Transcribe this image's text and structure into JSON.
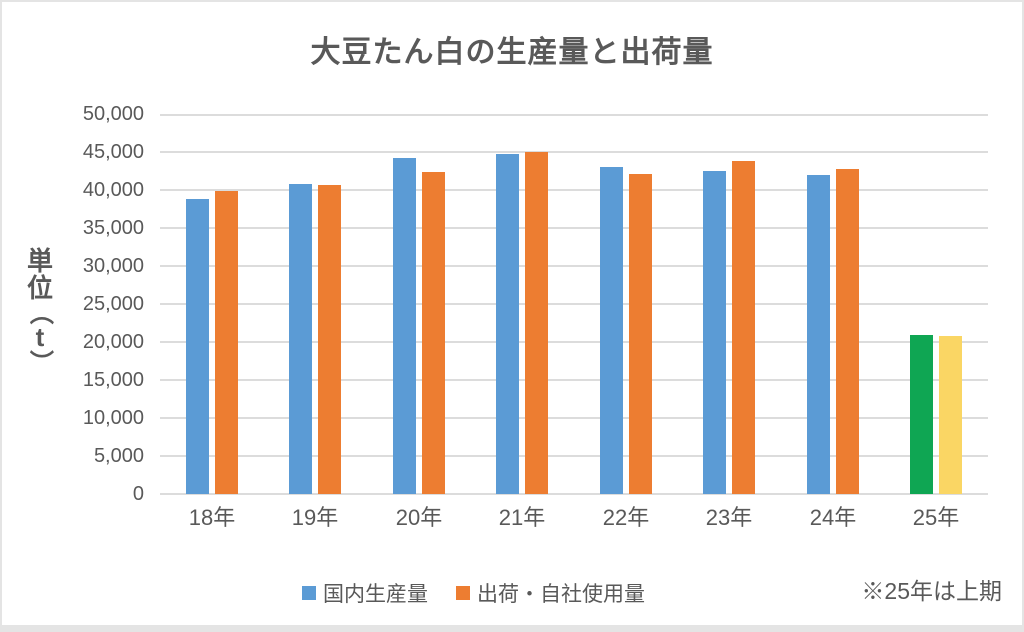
{
  "chart_data": {
    "type": "bar",
    "title": "大豆たん白の生産量と出荷量",
    "y_axis_title": "単位（t）",
    "y_axis_title_chars": [
      "単",
      "位",
      "（",
      "t",
      "）"
    ],
    "categories": [
      "18年",
      "19年",
      "20年",
      "21年",
      "22年",
      "23年",
      "24年",
      "25年"
    ],
    "series": [
      {
        "name": "国内生産量",
        "color": "#5B9BD5",
        "values": [
          38800,
          40800,
          44200,
          44700,
          43000,
          42500,
          42000,
          20900
        ]
      },
      {
        "name": "出荷・自社使用量",
        "color": "#ED7D31",
        "values": [
          39900,
          40700,
          42400,
          45000,
          42100,
          43800,
          42700,
          20800
        ]
      }
    ],
    "special_last_category": {
      "category": "25年",
      "colors": [
        "#0FA653",
        "#FAD664"
      ]
    },
    "footnote": "※25年は上期",
    "ylim": [
      0,
      50000
    ],
    "ytick_step": 5000,
    "ytick_labels": [
      "0",
      "5,000",
      "10,000",
      "15,000",
      "20,000",
      "25,000",
      "30,000",
      "35,000",
      "40,000",
      "45,000",
      "50,000"
    ],
    "grid": "horizontal",
    "legend_position": "bottom"
  },
  "colors": {
    "gridline": "#DCDCDC",
    "text": "#595959",
    "plot_background": "#FFFFFF",
    "frame": "#E4E4E4"
  }
}
